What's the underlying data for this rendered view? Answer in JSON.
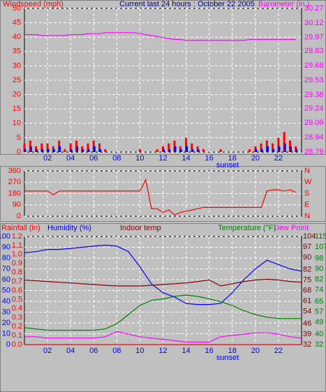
{
  "chart_data": [
    {
      "type": "bar",
      "title": "Current last 24 hours : October 22 2005",
      "y_label": "Windspeed (mph)",
      "y2_label": "Barometer (in.)",
      "y_color": "#ff0000",
      "y2_color": "#ff00ff",
      "title_color": "#000080",
      "x": [
        0,
        0.5,
        1,
        1.5,
        2,
        2.5,
        3,
        3.5,
        4,
        4.5,
        5,
        5.5,
        6,
        6.5,
        7,
        7.5,
        8,
        8.5,
        9,
        9.5,
        10,
        10.5,
        11,
        11.5,
        12,
        12.5,
        13,
        13.5,
        14,
        14.5,
        15,
        15.5,
        16,
        16.5,
        17,
        17.5,
        18,
        18.5,
        19,
        19.5,
        20,
        20.5,
        21,
        21.5,
        22,
        22.5,
        23,
        23.5
      ],
      "xlim": [
        0,
        24
      ],
      "xticks": [
        {
          "value": 2,
          "label": "02"
        },
        {
          "value": 4,
          "label": "04"
        },
        {
          "value": 6,
          "label": "06"
        },
        {
          "value": 8,
          "label": "08"
        },
        10,
        12,
        14,
        16,
        18,
        20,
        22
      ],
      "ylim": [
        0,
        50
      ],
      "yticks": [
        0,
        5,
        10,
        15,
        20,
        25,
        30,
        35,
        40,
        45,
        50
      ],
      "y2lim": [
        28.79,
        30.27
      ],
      "y2ticks": [
        28.79,
        28.94,
        29.09,
        29.24,
        29.38,
        29.53,
        29.68,
        29.83,
        29.97,
        30.12,
        30.27
      ],
      "grid": true,
      "series": [
        {
          "color": "#ff0000",
          "values": [
            3,
            4,
            2,
            3,
            3,
            2,
            4,
            1,
            3,
            4,
            2,
            3,
            4,
            3,
            1,
            0,
            0,
            0,
            0,
            0,
            1,
            0,
            0,
            1,
            2,
            3,
            4,
            2,
            5,
            3,
            2,
            1,
            0,
            0,
            1,
            0,
            0,
            0,
            0,
            1,
            2,
            3,
            4,
            3,
            5,
            7,
            4,
            2
          ]
        },
        {
          "color": "#0000ff",
          "values": [
            1,
            2,
            1,
            1,
            1,
            1,
            2,
            0,
            1,
            2,
            1,
            1,
            2,
            1,
            0,
            0,
            0,
            0,
            0,
            0,
            0,
            0,
            0,
            0,
            1,
            1,
            2,
            1,
            2,
            1,
            1,
            0,
            0,
            0,
            0,
            0,
            0,
            0,
            0,
            0,
            1,
            1,
            2,
            1,
            2,
            3,
            2,
            1
          ]
        },
        {
          "type": "line",
          "axis": "y2",
          "color": "#ff00ff",
          "values": [
            30.0,
            30.0,
            30.0,
            29.99,
            29.99,
            29.99,
            29.99,
            29.99,
            30.0,
            30.0,
            30.0,
            30.01,
            30.01,
            30.01,
            30.02,
            30.02,
            30.02,
            30.02,
            30.02,
            30.02,
            30.01,
            30.0,
            29.99,
            29.98,
            29.97,
            29.96,
            29.95,
            29.95,
            29.94,
            29.94,
            29.94,
            29.94,
            29.94,
            29.94,
            29.94,
            29.94,
            29.94,
            29.94,
            29.94,
            29.95,
            29.95,
            29.95,
            29.95,
            29.95,
            29.95,
            29.95,
            29.95,
            29.95
          ]
        }
      ],
      "annotations": [
        {
          "text": "sunset",
          "x": 17.6
        }
      ]
    },
    {
      "type": "line",
      "y_color": "#ff0000",
      "y2_color": "#ff0000",
      "x": [
        0,
        0.5,
        1,
        1.5,
        2,
        2.5,
        3,
        3.5,
        4,
        4.5,
        5,
        5.5,
        6,
        6.5,
        7,
        7.5,
        8,
        8.5,
        9,
        9.5,
        10,
        10.5,
        11,
        11.5,
        12,
        12.5,
        13,
        13.5,
        14,
        14.5,
        15,
        15.5,
        16,
        16.5,
        17,
        17.5,
        18,
        18.5,
        19,
        19.5,
        20,
        20.5,
        21,
        21.5,
        22,
        22.5,
        23,
        23.5
      ],
      "xlim": [
        0,
        24
      ],
      "ylim": [
        0,
        360
      ],
      "yticks": [
        0,
        90,
        180,
        270,
        360
      ],
      "y2lim": [
        0,
        360
      ],
      "y2ticks": [
        {
          "value": 0,
          "label": "N"
        },
        {
          "value": 90,
          "label": "E"
        },
        {
          "value": 180,
          "label": "S"
        },
        {
          "value": 270,
          "label": "W"
        },
        {
          "value": 360,
          "label": "N"
        }
      ],
      "grid": true,
      "series": [
        {
          "color": "#ff0000",
          "values": [
            200,
            200,
            200,
            200,
            200,
            170,
            200,
            200,
            200,
            200,
            200,
            200,
            200,
            200,
            200,
            200,
            200,
            200,
            200,
            200,
            200,
            290,
            60,
            60,
            30,
            50,
            10,
            30,
            40,
            50,
            60,
            70,
            70,
            70,
            70,
            70,
            70,
            70,
            70,
            70,
            70,
            70,
            200,
            210,
            210,
            200,
            210,
            190
          ]
        }
      ]
    },
    {
      "type": "line",
      "x": [
        0,
        1,
        2,
        3,
        4,
        5,
        6,
        7,
        8,
        9,
        10,
        11,
        12,
        13,
        14,
        15,
        16,
        17,
        18,
        19,
        20,
        21,
        22,
        23,
        24
      ],
      "xlim": [
        0,
        24
      ],
      "xticks": [
        {
          "value": 2,
          "label": "02"
        },
        {
          "value": 4,
          "label": "04"
        },
        {
          "value": 6,
          "label": "06"
        },
        {
          "value": 8,
          "label": "08"
        },
        10,
        12,
        14,
        16,
        18,
        20,
        22
      ],
      "grid": true,
      "axes": [
        {
          "id": "humidity",
          "side": "left",
          "color": "#0000ff",
          "lim": [
            0,
            100
          ],
          "ticks": [
            0,
            10,
            20,
            30,
            40,
            50,
            60,
            70,
            80,
            90,
            100
          ]
        },
        {
          "id": "rain",
          "side": "left",
          "color": "#ff0000",
          "lim": [
            0,
            1.2
          ],
          "ticks": [
            {
              "value": 0,
              "label": "0.0"
            },
            0.1,
            0.2,
            0.3,
            0.4,
            0.5,
            0.6,
            0.7,
            0.8,
            0.9,
            {
              "value": 1,
              "label": "1.0"
            },
            1.1,
            1.2
          ]
        },
        {
          "id": "indoor",
          "side": "right",
          "color": "#800000",
          "lim": [
            32,
            104
          ],
          "ticks": [
            32,
            39,
            46,
            54,
            61,
            68,
            75,
            82,
            90,
            97,
            104
          ]
        },
        {
          "id": "temp",
          "side": "right",
          "color": "#008000",
          "lim": [
            32,
            115
          ],
          "ticks": [
            32,
            40,
            49,
            57,
            65,
            74,
            82,
            90,
            98,
            107,
            115
          ]
        }
      ],
      "series": [
        {
          "name": "Rainfall (in)",
          "axis": "rain",
          "color": "#ff0000",
          "values": [
            0,
            0,
            0,
            0,
            0,
            0,
            0,
            0,
            0,
            0,
            0,
            0,
            0,
            0,
            0,
            0,
            0,
            0,
            0,
            0,
            0,
            0,
            0,
            0,
            0
          ]
        },
        {
          "name": "Humidity (%)",
          "axis": "humidity",
          "color": "#0000ff",
          "values": [
            85,
            86,
            88,
            88,
            89,
            90,
            91,
            92,
            91,
            86,
            72,
            56,
            48,
            44,
            38,
            37,
            37,
            38,
            48,
            60,
            70,
            78,
            74,
            70,
            68
          ]
        },
        {
          "name": "Indoor temp",
          "axis": "indoor",
          "color": "#800000",
          "values": [
            75,
            74.5,
            74,
            73.5,
            73,
            72.5,
            72,
            71.5,
            71,
            71,
            71,
            71.5,
            72,
            72.5,
            73,
            74,
            75,
            71,
            72.5,
            74,
            75,
            75.5,
            75,
            74,
            73.5
          ]
        },
        {
          "name": "Temperature (°F)",
          "axis": "temp",
          "color": "#008000",
          "values": [
            45,
            44,
            43,
            43,
            43,
            43,
            43,
            44,
            48,
            55,
            62,
            66,
            67,
            69,
            70,
            69,
            67,
            65,
            62,
            58,
            55,
            53,
            52,
            52,
            52
          ]
        },
        {
          "name": "Dew Point",
          "axis": "temp",
          "color": "#ff00ff",
          "values": [
            38,
            38,
            37,
            37,
            37,
            37,
            37,
            38,
            42,
            40,
            38,
            37,
            36,
            35,
            34,
            34,
            34,
            38,
            39,
            40,
            41,
            41,
            40,
            38,
            37
          ]
        }
      ],
      "annotations": [
        {
          "text": "sunset",
          "x": 17.6
        }
      ]
    }
  ]
}
